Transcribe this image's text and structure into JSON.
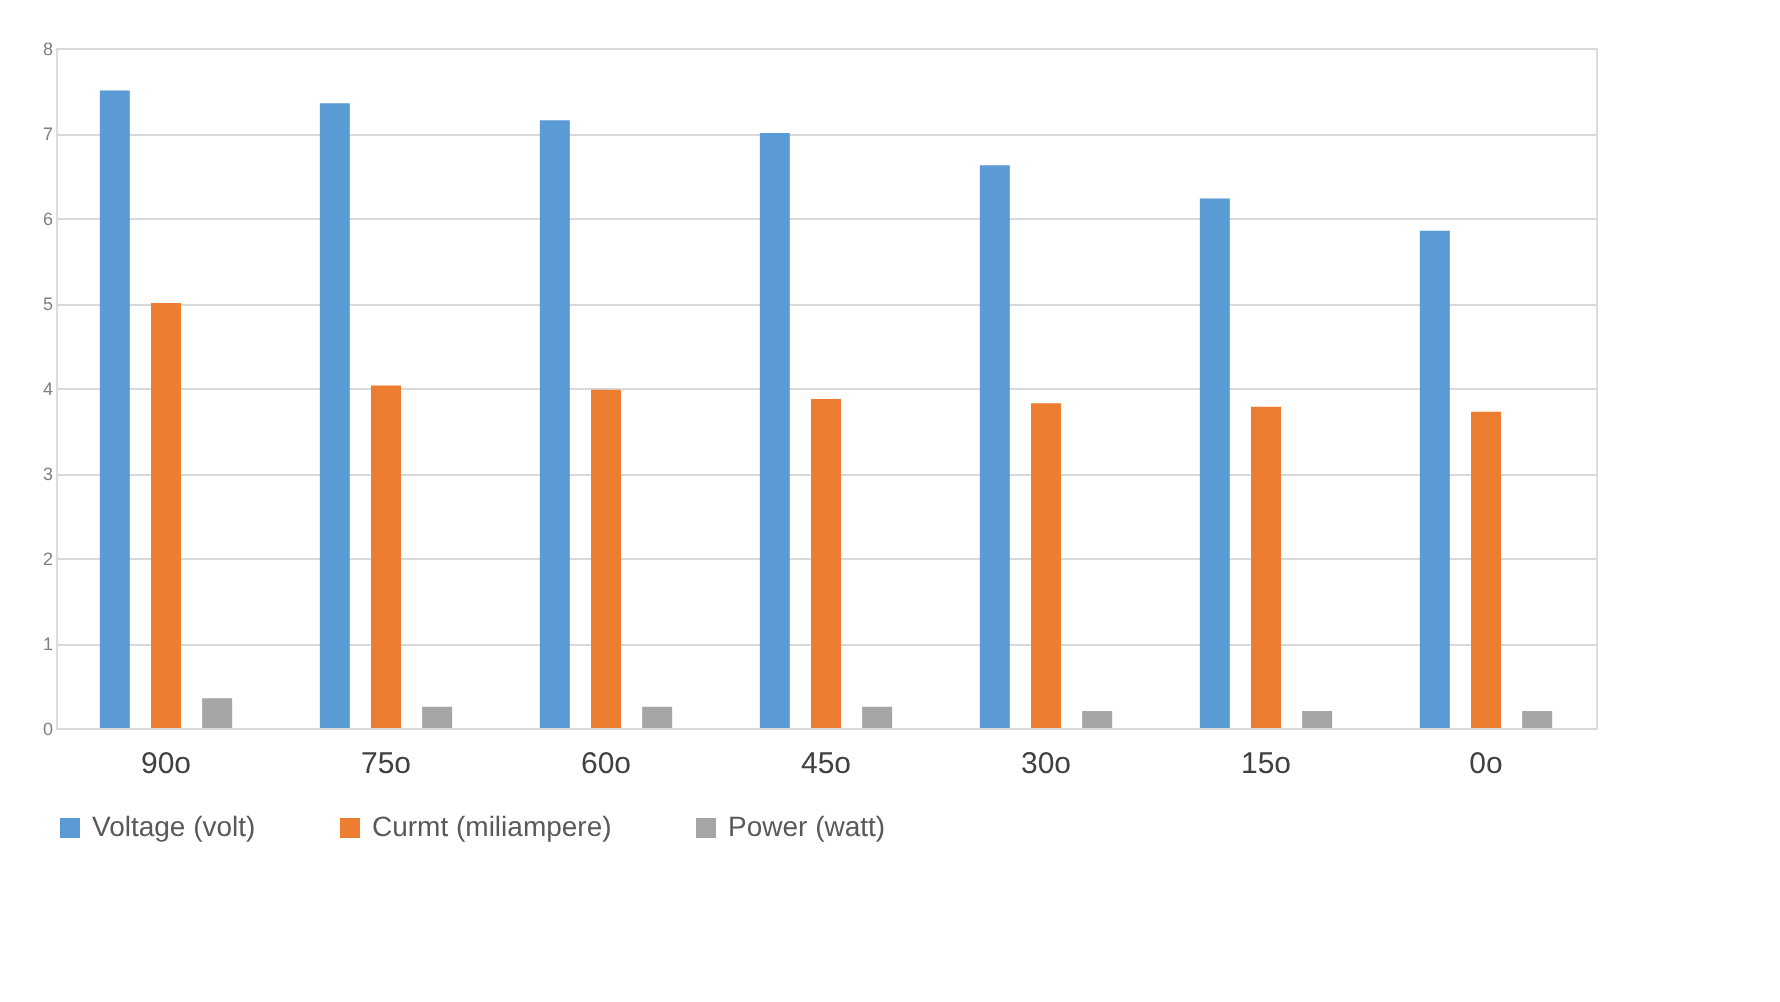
{
  "chart_data": {
    "type": "bar",
    "categories": [
      "90o",
      "75o",
      "60o",
      "45o",
      "30o",
      "15o",
      "0o"
    ],
    "series": [
      {
        "name": "Voltage (volt)",
        "color": "#5b9bd5",
        "values": [
          7.5,
          7.35,
          7.15,
          7.0,
          6.62,
          6.23,
          5.85
        ]
      },
      {
        "name": "Curmt (miliampere)",
        "color": "#ed7d31",
        "values": [
          5.0,
          4.03,
          3.98,
          3.87,
          3.82,
          3.78,
          3.72
        ]
      },
      {
        "name": "Power (watt)",
        "color": "#a5a5a5",
        "values": [
          0.35,
          0.25,
          0.25,
          0.25,
          0.2,
          0.2,
          0.2
        ]
      }
    ],
    "ylim": [
      0,
      8
    ],
    "yticks": [
      0,
      1,
      2,
      3,
      4,
      5,
      6,
      7,
      8
    ],
    "grid": "y",
    "legend": "bottom"
  }
}
